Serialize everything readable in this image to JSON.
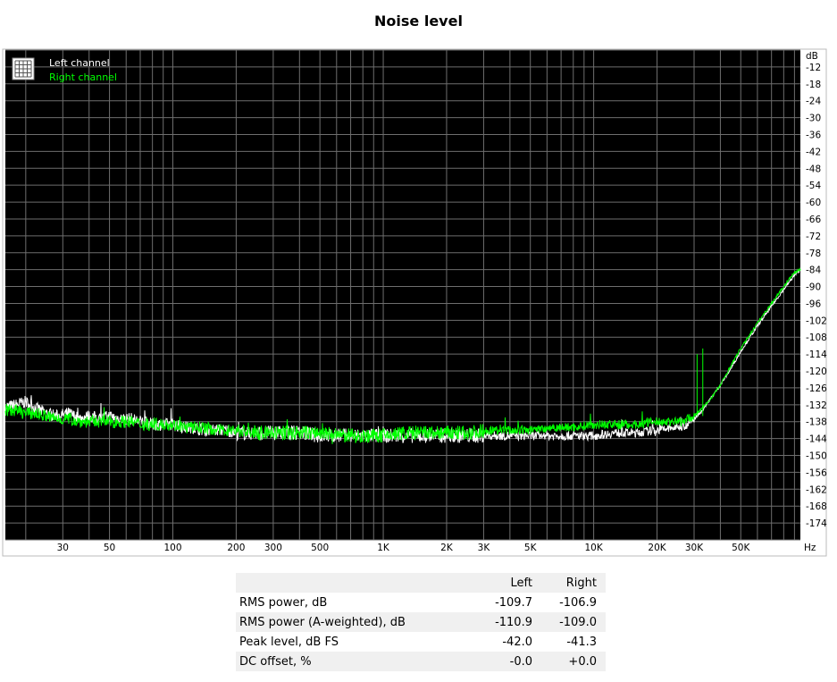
{
  "chart_data": {
    "type": "line",
    "title": "Noise level",
    "x_unit": "Hz",
    "y_unit": "dB",
    "x_scale": "log",
    "xlim": [
      16,
      96000
    ],
    "ylim": [
      -180,
      -6
    ],
    "x_ticks": [
      {
        "value": 30,
        "label": "30"
      },
      {
        "value": 50,
        "label": "50"
      },
      {
        "value": 100,
        "label": "100"
      },
      {
        "value": 200,
        "label": "200"
      },
      {
        "value": 300,
        "label": "300"
      },
      {
        "value": 500,
        "label": "500"
      },
      {
        "value": 1000,
        "label": "1K"
      },
      {
        "value": 2000,
        "label": "2K"
      },
      {
        "value": 3000,
        "label": "3K"
      },
      {
        "value": 5000,
        "label": "5K"
      },
      {
        "value": 10000,
        "label": "10K"
      },
      {
        "value": 20000,
        "label": "20K"
      },
      {
        "value": 30000,
        "label": "30K"
      },
      {
        "value": 50000,
        "label": "50K"
      }
    ],
    "y_ticks": [
      -12,
      -18,
      -24,
      -30,
      -36,
      -42,
      -48,
      -54,
      -60,
      -66,
      -72,
      -78,
      -84,
      -90,
      -96,
      -102,
      -108,
      -114,
      -120,
      -126,
      -132,
      -138,
      -144,
      -150,
      -156,
      -162,
      -168,
      -174
    ],
    "grid": true,
    "background": "#000000",
    "legend_position": "top-left",
    "series": [
      {
        "name": "Left channel",
        "color": "#ffffff",
        "x": [
          16,
          18,
          20,
          22,
          25,
          28,
          32,
          36,
          40,
          45,
          50,
          56,
          63,
          71,
          80,
          90,
          100,
          112,
          125,
          140,
          160,
          180,
          200,
          250,
          315,
          400,
          500,
          630,
          800,
          1000,
          1250,
          1600,
          2000,
          2500,
          3150,
          4000,
          5000,
          6300,
          8000,
          10000,
          12500,
          16000,
          20000,
          25000,
          28000,
          30000,
          32000,
          35000,
          40000,
          45000,
          50000,
          60000,
          70000,
          80000,
          90000,
          96000
        ],
        "y": [
          -133,
          -132,
          -131,
          -133,
          -135,
          -136,
          -135,
          -137,
          -136,
          -137,
          -136,
          -137,
          -137,
          -138,
          -139,
          -139,
          -139,
          -140,
          -140,
          -141,
          -141,
          -141,
          -142,
          -142,
          -142,
          -142,
          -143,
          -143,
          -143,
          -143,
          -143,
          -143,
          -143,
          -143,
          -143,
          -143,
          -143,
          -143,
          -143,
          -143,
          -142,
          -142,
          -141,
          -140,
          -139,
          -137,
          -135,
          -131,
          -125,
          -119,
          -113,
          -104,
          -97,
          -91,
          -86,
          -84
        ]
      },
      {
        "name": "Right channel",
        "color": "#00ff00",
        "x": [
          16,
          18,
          20,
          22,
          25,
          28,
          32,
          36,
          40,
          45,
          50,
          56,
          63,
          71,
          80,
          90,
          100,
          112,
          125,
          140,
          160,
          180,
          200,
          250,
          315,
          400,
          500,
          630,
          800,
          1000,
          1250,
          1600,
          2000,
          2500,
          3150,
          4000,
          5000,
          6300,
          8000,
          10000,
          12500,
          16000,
          20000,
          25000,
          28000,
          30000,
          32000,
          35000,
          40000,
          45000,
          50000,
          60000,
          70000,
          80000,
          90000,
          96000
        ],
        "y": [
          -134,
          -134,
          -135,
          -135,
          -136,
          -137,
          -137,
          -138,
          -138,
          -138,
          -138,
          -138,
          -138,
          -139,
          -139,
          -139,
          -139,
          -140,
          -140,
          -140,
          -141,
          -141,
          -141,
          -142,
          -142,
          -142,
          -142,
          -143,
          -143,
          -143,
          -142,
          -142,
          -142,
          -142,
          -141,
          -141,
          -141,
          -140,
          -140,
          -139,
          -139,
          -139,
          -138,
          -138,
          -137,
          -136,
          -134,
          -131,
          -125,
          -118,
          -112,
          -103,
          -96,
          -90,
          -85,
          -84
        ]
      }
    ],
    "spikes": [
      {
        "x": 31000,
        "y": -114,
        "series": "Right channel"
      },
      {
        "x": 33000,
        "y": -112,
        "series": "Right channel"
      }
    ]
  },
  "table": {
    "columns": [
      "",
      "Left",
      "Right"
    ],
    "rows": [
      {
        "label": "RMS power, dB",
        "left": "-109.7",
        "right": "-106.9"
      },
      {
        "label": "RMS power (A-weighted), dB",
        "left": "-110.9",
        "right": "-109.0"
      },
      {
        "label": "Peak level, dB FS",
        "left": "-42.0",
        "right": "-41.3"
      },
      {
        "label": "DC offset, %",
        "left": "-0.0",
        "right": "+0.0"
      }
    ]
  }
}
